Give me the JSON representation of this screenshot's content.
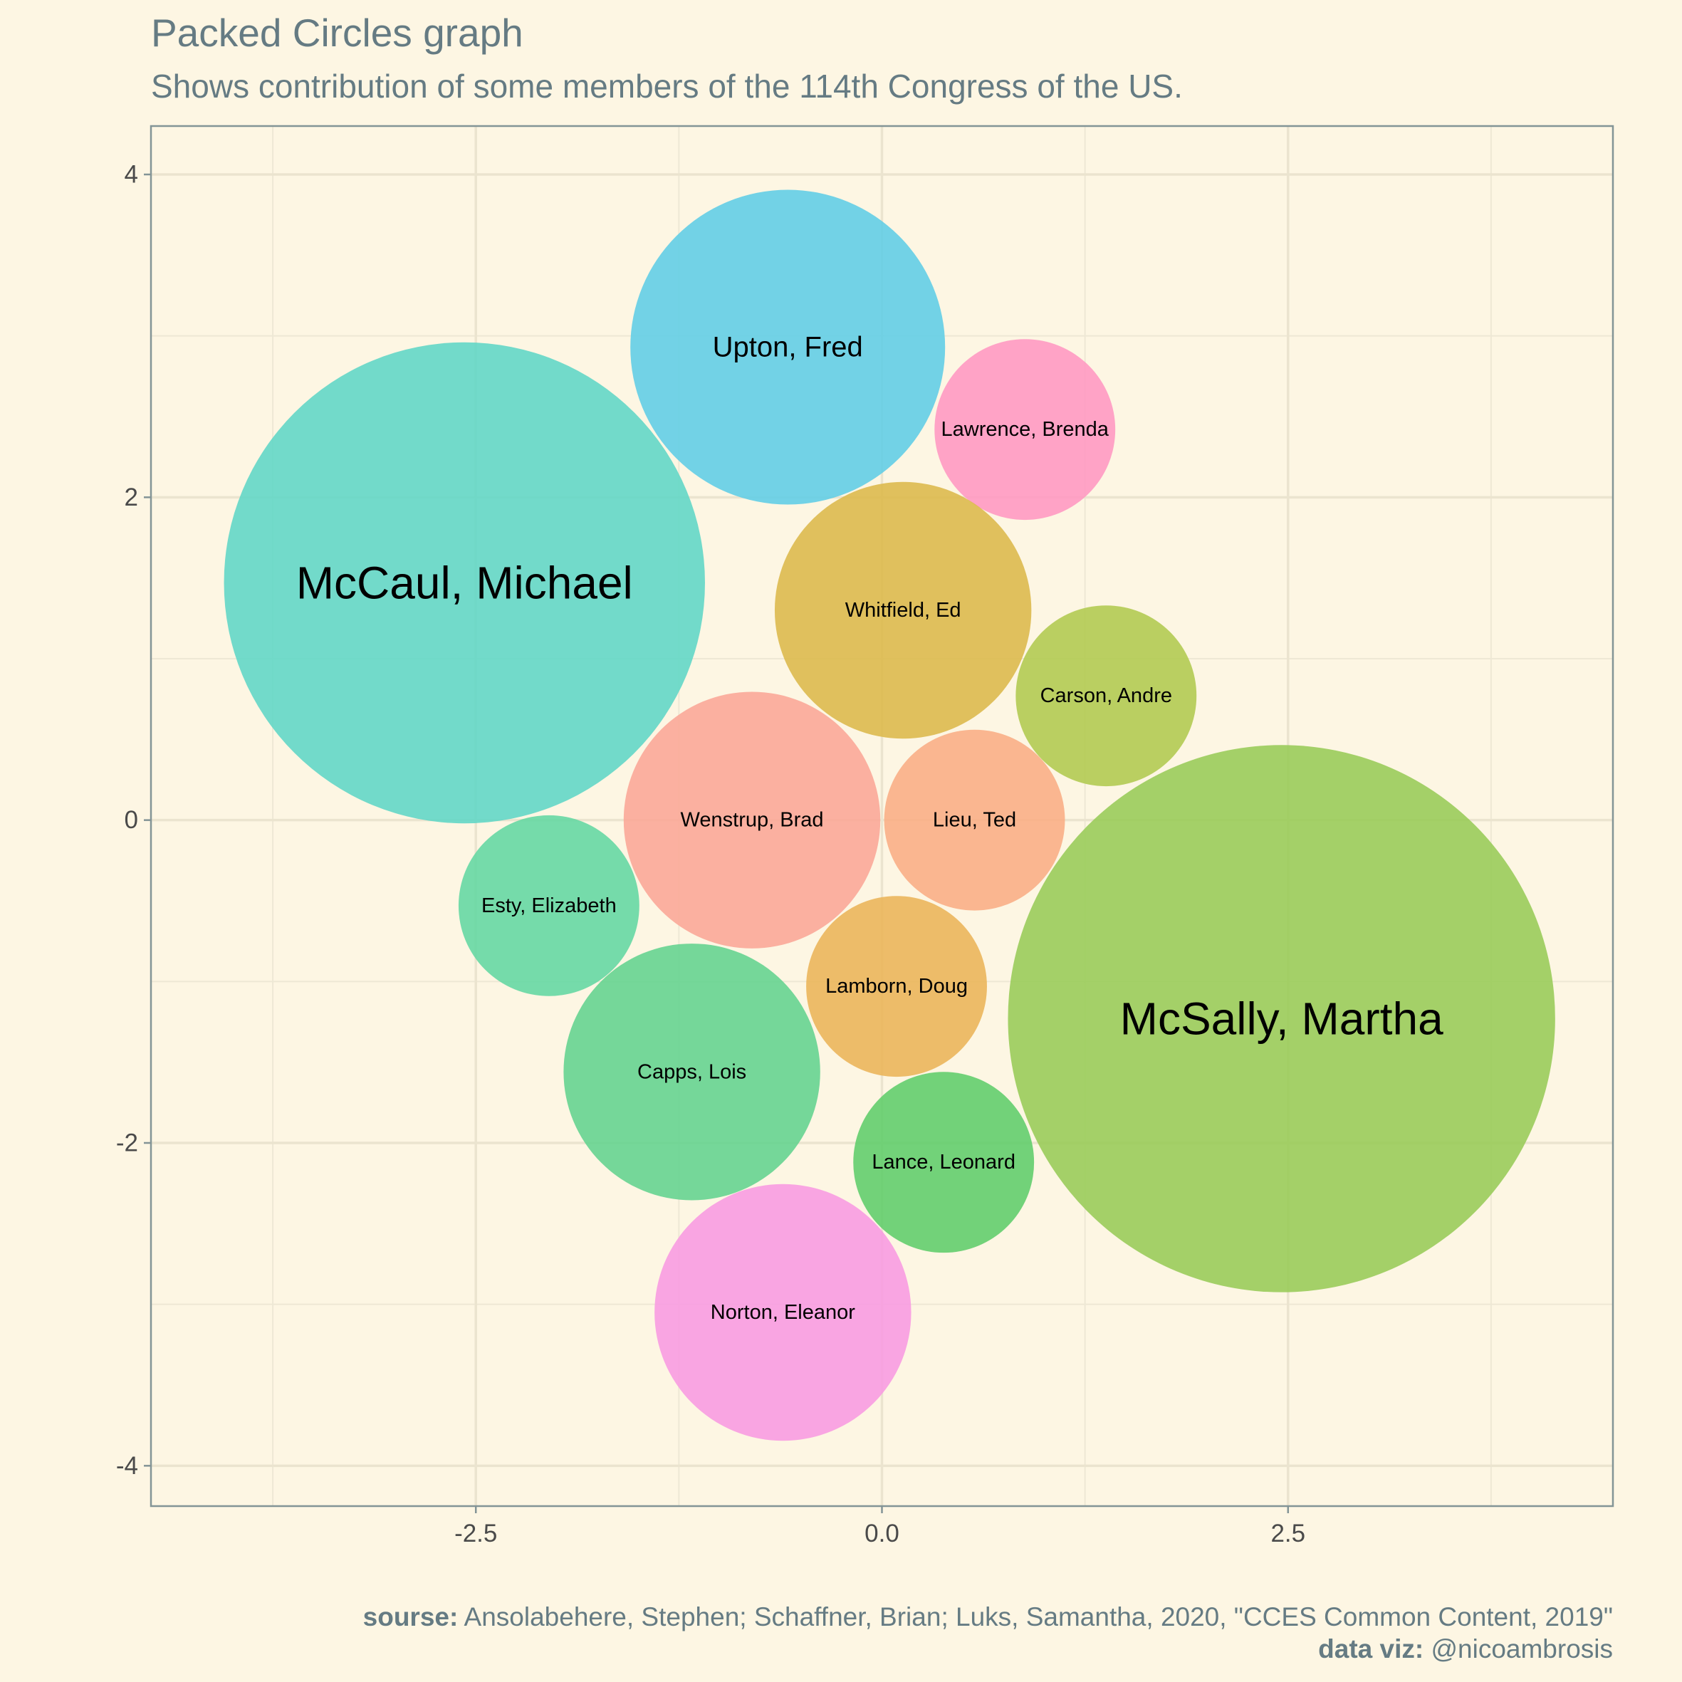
{
  "chart_data": {
    "type": "packed-circles",
    "title": "Packed Circles graph",
    "subtitle": "Shows contribution of some members of the 114th Congress of the US.",
    "xlim": [
      -4.5,
      4.5
    ],
    "ylim": [
      -4.25,
      4.3
    ],
    "x_ticks": [
      {
        "value": -2.5,
        "label": "-2.5"
      },
      {
        "value": 0,
        "label": "0.0"
      },
      {
        "value": 2.5,
        "label": "2.5"
      }
    ],
    "y_ticks": [
      {
        "value": 4,
        "label": "4"
      },
      {
        "value": 2,
        "label": "2"
      },
      {
        "value": 0,
        "label": "0"
      },
      {
        "value": -2,
        "label": "-2"
      },
      {
        "value": -4,
        "label": "-4"
      }
    ],
    "grid": true,
    "circles": [
      {
        "label": "McCaul, Michael",
        "x": -2.57,
        "y": 1.47,
        "r": 2.98,
        "color": "#5fd6c6"
      },
      {
        "label": "Upton, Fred",
        "x": -0.58,
        "y": 2.93,
        "r": 1.95,
        "color": "#5fcde6"
      },
      {
        "label": "Lawrence, Brenda",
        "x": 0.88,
        "y": 2.42,
        "r": 1.12,
        "color": "#ff97c2"
      },
      {
        "label": "Whitfield, Ed",
        "x": 0.13,
        "y": 1.3,
        "r": 1.59,
        "color": "#dcb84a"
      },
      {
        "label": "Carson, Andre",
        "x": 1.38,
        "y": 0.77,
        "r": 1.12,
        "color": "#b0c94e"
      },
      {
        "label": "Wenstrup, Brad",
        "x": -0.8,
        "y": 0.0,
        "r": 1.59,
        "color": "#fba696"
      },
      {
        "label": "Lieu, Ted",
        "x": 0.57,
        "y": 0.0,
        "r": 1.12,
        "color": "#f9ad84"
      },
      {
        "label": "Esty, Elizabeth",
        "x": -2.05,
        "y": -0.53,
        "r": 1.12,
        "color": "#62d7a2"
      },
      {
        "label": "Lamborn, Doug",
        "x": 0.09,
        "y": -1.03,
        "r": 1.12,
        "color": "#eab458"
      },
      {
        "label": "McSally, Martha",
        "x": 2.46,
        "y": -1.23,
        "r": 3.39,
        "color": "#97cb57"
      },
      {
        "label": "Capps, Lois",
        "x": -1.17,
        "y": -1.56,
        "r": 1.59,
        "color": "#62d38e"
      },
      {
        "label": "Lance, Leonard",
        "x": 0.38,
        "y": -2.12,
        "r": 1.12,
        "color": "#5fcd6a"
      },
      {
        "label": "Norton, Eleanor",
        "x": -0.61,
        "y": -3.05,
        "r": 1.59,
        "color": "#f89ae1"
      }
    ]
  },
  "caption": {
    "source_label": "sourse:",
    "source_text": " Ansolabehere, Stephen; Schaffner, Brian; Luks, Samantha, 2020, \"CCES Common Content, 2019\"",
    "viz_label": "data viz:",
    "viz_text": " @nicoambrosis"
  }
}
